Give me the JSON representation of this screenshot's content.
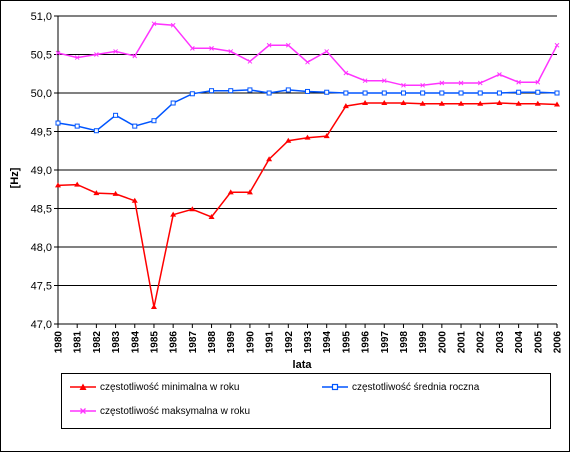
{
  "chart_data": {
    "type": "line",
    "title": "",
    "xlabel": "lata",
    "ylabel": "[Hz]",
    "ylim": [
      47.0,
      51.0
    ],
    "y_ticks": [
      "47,0",
      "47,5",
      "48,0",
      "48,5",
      "49,0",
      "49,5",
      "50,0",
      "50,5",
      "51,0"
    ],
    "y_tick_values": [
      47.0,
      47.5,
      48.0,
      48.5,
      49.0,
      49.5,
      50.0,
      50.5,
      51.0
    ],
    "grid": "horizontal",
    "legend_position": "bottom",
    "categories": [
      "1980",
      "1981",
      "1982",
      "1983",
      "1984",
      "1985",
      "1986",
      "1987",
      "1988",
      "1989",
      "1990",
      "1991",
      "1992",
      "1993",
      "1994",
      "1995",
      "1996",
      "1997",
      "1998",
      "1999",
      "2000",
      "2001",
      "2002",
      "2003",
      "2004",
      "2005",
      "2006"
    ],
    "series": [
      {
        "name": "częstotliwość minimalna w roku",
        "color": "#ff0000",
        "marker": "triangle",
        "values": [
          48.8,
          48.81,
          48.7,
          48.69,
          48.6,
          47.22,
          48.42,
          48.49,
          48.39,
          48.71,
          48.71,
          49.14,
          49.38,
          49.42,
          49.44,
          49.83,
          49.87,
          49.87,
          49.87,
          49.86,
          49.86,
          49.86,
          49.86,
          49.87,
          49.86,
          49.86,
          49.85
        ]
      },
      {
        "name": "częstotliwość średnia roczna",
        "color": "#0055ff",
        "marker": "square",
        "values": [
          49.61,
          49.57,
          49.51,
          49.71,
          49.57,
          49.64,
          49.87,
          49.99,
          50.03,
          50.03,
          50.04,
          50.0,
          50.04,
          50.02,
          50.01,
          50.0,
          50.0,
          50.0,
          50.0,
          50.0,
          50.0,
          50.0,
          50.0,
          50.0,
          50.01,
          50.01,
          50.0
        ]
      },
      {
        "name": "częstotliwość maksymalna w roku",
        "color": "#ff33ff",
        "marker": "x",
        "values": [
          50.52,
          50.46,
          50.5,
          50.54,
          50.48,
          50.9,
          50.88,
          50.58,
          50.58,
          50.54,
          50.41,
          50.62,
          50.62,
          50.4,
          50.54,
          50.26,
          50.16,
          50.16,
          50.1,
          50.1,
          50.13,
          50.13,
          50.13,
          50.24,
          50.14,
          50.14,
          50.62
        ]
      }
    ]
  }
}
